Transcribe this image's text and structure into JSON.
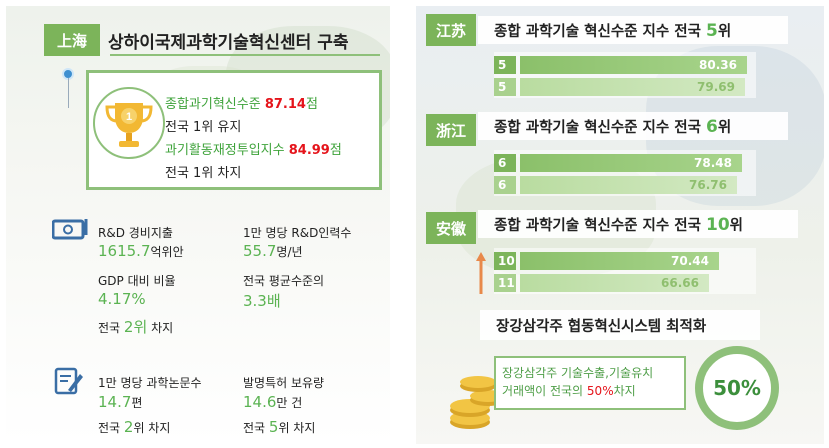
{
  "left": {
    "region": "上海",
    "title": "상하이국제과학기술혁신센터 구축",
    "award": {
      "rank_badge": "1",
      "line1_label": "종합과기혁신수준 ",
      "line1_value": "87.14",
      "line1_unit": "점",
      "line2": "전국 1위 유지",
      "line3_label": "과기활동재정투입지수 ",
      "line3_value": "84.99",
      "line3_unit": "점",
      "line4": "전국 1위 차지"
    },
    "rd": {
      "label": "R&D 경비지출",
      "value": "1615.7",
      "unit": "억위안",
      "gdp_label": "GDP 대비 비율",
      "gdp_value": "4.17%",
      "rank_prefix": "전국 ",
      "rank_value": "2위",
      "rank_suffix": " 차지"
    },
    "personnel": {
      "label": "1만 명당 R&D인력수",
      "value": "55.7",
      "unit": "명/년",
      "avg_label": "전국 평균수준의",
      "avg_value": "3.3배"
    },
    "papers": {
      "label": "1만 명당 과학논문수",
      "value": "14.7",
      "unit": "편",
      "rank_prefix": "전국 ",
      "rank_value": "2",
      "rank_suffix": "위 차지"
    },
    "patents": {
      "label": "발명특허 보유량",
      "value": "14.6",
      "unit": "만 건",
      "rank_prefix": "전국 ",
      "rank_value": "5",
      "rank_suffix": "위 차지"
    }
  },
  "right": {
    "jiangsu": {
      "region": "江苏",
      "title_prefix": "종합 과학기술 혁신수준 지수 전국 ",
      "title_rank": "5",
      "title_suffix": "위"
    },
    "zhejiang": {
      "region": "浙江",
      "title_prefix": "종합 과학기술 혁신수준 지수 전국 ",
      "title_rank": "6",
      "title_suffix": "위"
    },
    "anhui": {
      "region": "安徽",
      "title_prefix": "종합 과학기술 혁신수준 지수 전국 ",
      "title_rank": "10",
      "title_suffix": "위"
    },
    "footer_title": "장강삼각주 협동혁신시스템 최적화",
    "footer_text_prefix": "장강삼각주 기술수출,기술유치",
    "footer_text_line2": "거래액이 전국의 ",
    "footer_text_pct": "50%",
    "footer_text_suffix": "차지",
    "circle_value": "50%"
  },
  "colors": {
    "green": "#7cb45a",
    "light_green": "#a9d18e",
    "red": "#e5141b",
    "value_green": "#5bb352"
  },
  "chart_data": [
    {
      "type": "bar",
      "title": "종합 과학기술 혁신수준 지수 전국 5위",
      "categories": [
        "5",
        "5"
      ],
      "values": [
        80.36,
        79.69
      ]
    },
    {
      "type": "bar",
      "title": "종합 과학기술 혁신수준 지수 전국 6위",
      "categories": [
        "6",
        "6"
      ],
      "values": [
        78.48,
        76.76
      ]
    },
    {
      "type": "bar",
      "title": "종합 과학기술 혁신수준 지수 전국 10위",
      "categories": [
        "10",
        "11"
      ],
      "values": [
        70.44,
        66.66
      ]
    }
  ]
}
